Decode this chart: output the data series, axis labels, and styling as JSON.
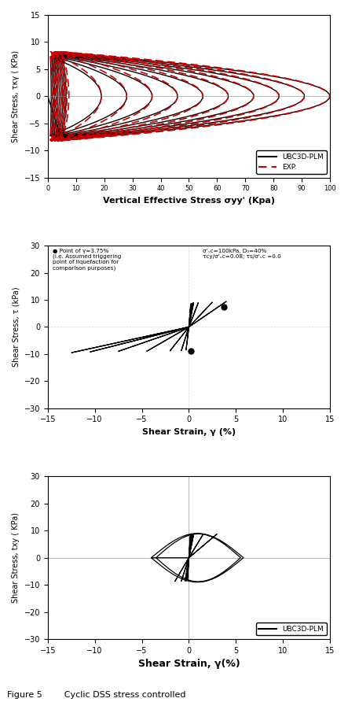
{
  "plot1": {
    "ylabel": "Shear Stress, τκγ ( KPa)",
    "xlabel": "Vertical Effective Stress σyy' (Kpa)",
    "ylim": [
      -15,
      15
    ],
    "xlim": [
      0,
      100
    ],
    "yticks": [
      -15,
      -10,
      -5,
      0,
      5,
      10,
      15
    ],
    "xticks": [
      0,
      10,
      20,
      30,
      40,
      50,
      60,
      70,
      80,
      90,
      100
    ],
    "legend_black": "UBC3D-PLM",
    "legend_red": "EXP.",
    "black_color": "#000000",
    "red_color": "#cc0000",
    "tau_amp": 8.0,
    "sigma0": 100.0,
    "n_cycles": 10
  },
  "plot2": {
    "ylabel": "Shear Stress, τ (kPa)",
    "xlabel": "Shear Strain, γ (%)",
    "ylim": [
      -30,
      30
    ],
    "xlim": [
      -15,
      15
    ],
    "yticks": [
      -30,
      -20,
      -10,
      0,
      10,
      20,
      30
    ],
    "xticks": [
      -15,
      -10,
      -5,
      0,
      5,
      10,
      15
    ],
    "annotation_left": "● Point of γ=3.75%\n(i.e. Assumed triggering\npoint of liquefaction for\ncomparison purposes)",
    "annotation_right": "σ'ᵥc=100kPa, D₀=40%\nτcy/σ'ᵥc=0.08; τs/σ'ᵥc =0.0",
    "point1_x": 3.75,
    "point1_y": 7.5,
    "point2_x": 0.2,
    "point2_y": -9.0,
    "black_color": "#000000"
  },
  "plot3": {
    "ylabel": "Shear Stress, txy ( KPa)",
    "xlabel": "Shear Strain, γ(%)",
    "ylim": [
      -30,
      30
    ],
    "xlim": [
      -15,
      15
    ],
    "yticks": [
      -30,
      -20,
      -10,
      0,
      10,
      20,
      30
    ],
    "xticks": [
      -15,
      -10,
      -5,
      0,
      5,
      10,
      15
    ],
    "legend_black": "UBC3D-PLM",
    "black_color": "#000000"
  },
  "figure_caption": "Figure 5        Cyclic DSS stress controlled",
  "bg_color": "#ffffff"
}
